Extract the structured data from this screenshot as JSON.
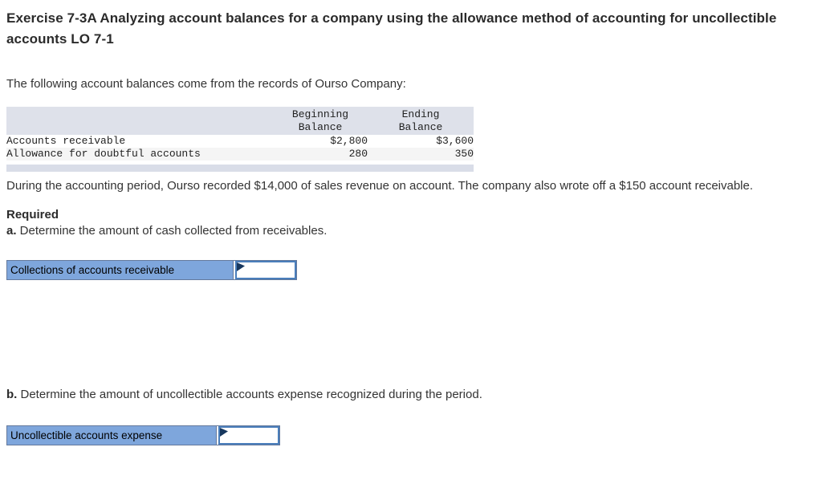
{
  "header": {
    "title": "Exercise 7-3A Analyzing account balances for a company using the allowance method of accounting for uncollectible accounts LO 7-1"
  },
  "intro": "The following account balances come from the records of Ourso Company:",
  "balance_table": {
    "headers": {
      "beginning": "Beginning\nBalance",
      "ending": "Ending\nBalance"
    },
    "rows": [
      {
        "label": "Accounts receivable",
        "beginning": "$2,800",
        "ending": "$3,600"
      },
      {
        "label": "Allowance for doubtful accounts",
        "beginning": "280",
        "ending": "350"
      }
    ]
  },
  "narrative": "During the accounting period, Ourso recorded $14,000 of sales revenue on account. The company also wrote off a $150 account receivable.",
  "required": {
    "heading": "Required",
    "a_label": "a.",
    "a_text": " Determine the amount of cash collected from receivables.",
    "b_label": "b.",
    "b_text": " Determine the amount of uncollectible accounts expense recognized during the period."
  },
  "answers": {
    "a": {
      "label": "Collections of accounts receivable",
      "value": ""
    },
    "b": {
      "label": "Uncollectible accounts expense",
      "value": ""
    }
  },
  "colors": {
    "answer_label_bg": "#7ea6dc",
    "answer_input_border": "#4a7ebb",
    "marker_navy": "#17375e",
    "table_header_bg": "#dee1ea",
    "table_alt_row_bg": "#f5f5f5",
    "table_footer_band_bg": "#d9dde8"
  }
}
